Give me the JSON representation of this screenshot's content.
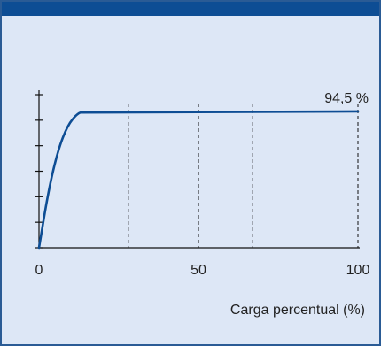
{
  "chart_data": {
    "type": "line",
    "title": "",
    "xlabel": "Carga percentual (%)",
    "ylabel": "",
    "xlim": [
      0,
      100
    ],
    "ylim": [
      0,
      100
    ],
    "x_ticks": [
      {
        "value": 0,
        "label": "0"
      },
      {
        "value": 50,
        "label": "50"
      },
      {
        "value": 100,
        "label": "100"
      }
    ],
    "y_tick_count": 7,
    "vertical_gridlines": [
      28,
      50,
      67,
      100
    ],
    "grid_style": "dashed",
    "series": [
      {
        "color": "#0d4d94",
        "points": [
          [
            0,
            0
          ],
          [
            3,
            40
          ],
          [
            6,
            68
          ],
          [
            9,
            85
          ],
          [
            12,
            93
          ],
          [
            14,
            94.5
          ],
          [
            100,
            94.5
          ]
        ]
      }
    ],
    "annotation": {
      "text": "94,5 %",
      "x": 100,
      "y": 94.5
    }
  }
}
